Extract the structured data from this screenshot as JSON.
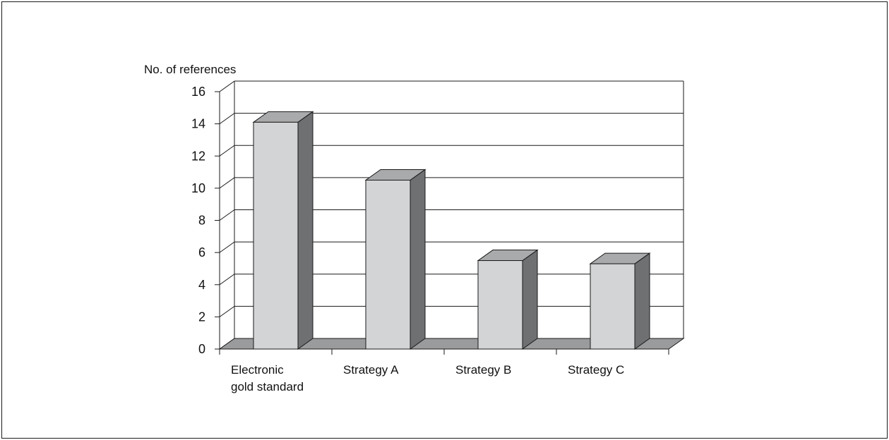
{
  "chart_data": {
    "type": "bar",
    "style": "3d-column",
    "title": "",
    "xlabel": "",
    "ylabel": "No. of references",
    "categories": [
      [
        "Electronic",
        "gold standard"
      ],
      [
        "Strategy A"
      ],
      [
        "Strategy B"
      ],
      [
        "Strategy C"
      ]
    ],
    "values": [
      14.1,
      10.5,
      5.5,
      5.3
    ],
    "yticks": [
      "0",
      "2",
      "4",
      "6",
      "8",
      "10",
      "12",
      "14",
      "16"
    ],
    "ylim": [
      0,
      16
    ],
    "grid": true,
    "legend": "none",
    "colors": {
      "bar_front": "#d3d4d6",
      "bar_top": "#a9aaab",
      "bar_side": "#6f7072",
      "floor": "#9a9b9c",
      "line": "#1a1a1a"
    }
  }
}
